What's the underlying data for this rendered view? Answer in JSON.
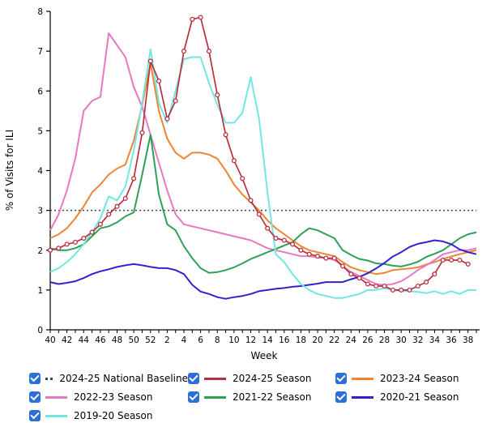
{
  "chart_data": {
    "type": "line",
    "title": "",
    "xlabel": "Week",
    "ylabel": "% of Visits for ILI",
    "ylim": [
      0,
      8
    ],
    "y_ticks": [
      0,
      1,
      2,
      3,
      4,
      5,
      6,
      7,
      8
    ],
    "weeks": [
      40,
      41,
      42,
      43,
      44,
      45,
      46,
      47,
      48,
      49,
      50,
      51,
      52,
      1,
      2,
      3,
      4,
      5,
      6,
      7,
      8,
      9,
      10,
      11,
      12,
      13,
      14,
      15,
      16,
      17,
      18,
      19,
      20,
      21,
      22,
      23,
      24,
      25,
      26,
      27,
      28,
      29,
      30,
      31,
      32,
      33,
      34,
      35,
      36,
      37,
      38,
      39
    ],
    "x_labels_shown_every": "even weeks only",
    "grid": "off",
    "legend_position": "bottom",
    "baseline": {
      "label": "2024-25 National Baseline",
      "value": 3.0,
      "color": "#33475e",
      "style": "dotted"
    },
    "series": [
      {
        "name": "2024-25 Season",
        "color": "#b8303f",
        "markers": true,
        "values": [
          2.0,
          2.05,
          2.15,
          2.2,
          2.3,
          2.45,
          2.65,
          2.9,
          3.1,
          3.3,
          3.8,
          4.95,
          6.75,
          6.25,
          5.3,
          5.75,
          7.0,
          7.8,
          7.85,
          7.0,
          5.9,
          4.9,
          4.25,
          3.8,
          3.25,
          2.9,
          2.55,
          2.3,
          2.25,
          2.15,
          2.0,
          1.9,
          1.85,
          1.8,
          1.8,
          1.6,
          1.4,
          1.3,
          1.15,
          1.1,
          1.1,
          1.0,
          1.0,
          1.0,
          1.1,
          1.2,
          1.4,
          1.75,
          1.75,
          1.75,
          1.65,
          null
        ]
      },
      {
        "name": "2023-24 Season",
        "color": "#ee8533",
        "markers": false,
        "values": [
          2.3,
          2.4,
          2.55,
          2.8,
          3.1,
          3.45,
          3.65,
          3.9,
          4.05,
          4.15,
          4.75,
          5.65,
          6.7,
          5.5,
          4.8,
          4.45,
          4.3,
          4.45,
          4.45,
          4.4,
          4.3,
          4.0,
          3.65,
          3.4,
          3.2,
          3.0,
          2.75,
          2.55,
          2.4,
          2.25,
          2.1,
          2.0,
          1.95,
          1.9,
          1.85,
          1.7,
          1.57,
          1.5,
          1.45,
          1.4,
          1.43,
          1.5,
          1.52,
          1.54,
          1.57,
          1.64,
          1.7,
          1.78,
          1.84,
          1.9,
          1.95,
          2.0
        ]
      },
      {
        "name": "2022-23 Season",
        "color": "#e878c2",
        "markers": false,
        "values": [
          2.5,
          2.9,
          3.5,
          4.3,
          5.5,
          5.75,
          5.85,
          7.45,
          7.15,
          6.85,
          6.1,
          5.6,
          4.9,
          4.2,
          3.5,
          2.9,
          2.65,
          2.6,
          2.55,
          2.5,
          2.45,
          2.4,
          2.35,
          2.3,
          2.25,
          2.15,
          2.05,
          2.0,
          1.95,
          1.9,
          1.85,
          1.85,
          1.82,
          1.8,
          1.76,
          1.6,
          1.45,
          1.35,
          1.25,
          1.15,
          1.12,
          1.15,
          1.22,
          1.35,
          1.5,
          1.62,
          1.75,
          1.9,
          1.95,
          2.0,
          2.0,
          2.05
        ]
      },
      {
        "name": "2021-22 Season",
        "color": "#2fa156",
        "markers": false,
        "values": [
          2.05,
          2.0,
          2.0,
          2.05,
          2.15,
          2.35,
          2.55,
          2.6,
          2.7,
          2.85,
          2.95,
          3.9,
          4.9,
          3.4,
          2.65,
          2.5,
          2.1,
          1.8,
          1.55,
          1.43,
          1.45,
          1.5,
          1.57,
          1.67,
          1.78,
          1.86,
          1.95,
          2.03,
          2.12,
          2.2,
          2.4,
          2.55,
          2.5,
          2.4,
          2.3,
          2.0,
          1.88,
          1.78,
          1.74,
          1.67,
          1.65,
          1.61,
          1.59,
          1.64,
          1.71,
          1.83,
          1.91,
          2.0,
          2.15,
          2.3,
          2.4,
          2.45
        ]
      },
      {
        "name": "2020-21 Season",
        "color": "#3322cf",
        "markers": false,
        "values": [
          1.2,
          1.15,
          1.18,
          1.22,
          1.3,
          1.4,
          1.47,
          1.52,
          1.58,
          1.62,
          1.65,
          1.62,
          1.58,
          1.55,
          1.55,
          1.5,
          1.4,
          1.13,
          0.96,
          0.9,
          0.82,
          0.78,
          0.82,
          0.85,
          0.9,
          0.97,
          1.0,
          1.03,
          1.05,
          1.08,
          1.1,
          1.13,
          1.16,
          1.2,
          1.2,
          1.2,
          1.27,
          1.33,
          1.42,
          1.54,
          1.68,
          1.84,
          1.95,
          2.08,
          2.16,
          2.2,
          2.25,
          2.22,
          2.15,
          2.02,
          1.95,
          1.9
        ]
      },
      {
        "name": "2019-20 Season",
        "color": "#70e7e3",
        "markers": false,
        "values": [
          1.45,
          1.55,
          1.7,
          1.9,
          2.15,
          2.45,
          2.8,
          3.35,
          3.25,
          3.6,
          4.5,
          5.7,
          7.05,
          5.7,
          5.2,
          6.0,
          6.8,
          6.85,
          6.85,
          6.2,
          5.65,
          5.2,
          5.2,
          5.45,
          6.35,
          5.3,
          3.45,
          1.9,
          1.7,
          1.4,
          1.15,
          1.0,
          0.9,
          0.85,
          0.8,
          0.8,
          0.85,
          0.9,
          1.0,
          1.0,
          1.05,
          1.0,
          0.97,
          0.97,
          0.95,
          0.92,
          0.97,
          0.9,
          0.97,
          0.9,
          1.0,
          1.0
        ]
      }
    ],
    "legend": {
      "checkbox_color": "#2b6fd7",
      "items": [
        {
          "label": "2024-25 National Baseline",
          "color": "#33475e",
          "dotted": true,
          "checked": true
        },
        {
          "label": "2024-25 Season",
          "color": "#b8303f",
          "dotted": false,
          "checked": true
        },
        {
          "label": "2023-24 Season",
          "color": "#ee8533",
          "dotted": false,
          "checked": true
        },
        {
          "label": "2022-23 Season",
          "color": "#e878c2",
          "dotted": false,
          "checked": true
        },
        {
          "label": "2021-22 Season",
          "color": "#2fa156",
          "dotted": false,
          "checked": true
        },
        {
          "label": "2020-21 Season",
          "color": "#3322cf",
          "dotted": false,
          "checked": true
        },
        {
          "label": "2019-20 Season",
          "color": "#70e7e3",
          "dotted": false,
          "checked": true
        }
      ]
    }
  }
}
